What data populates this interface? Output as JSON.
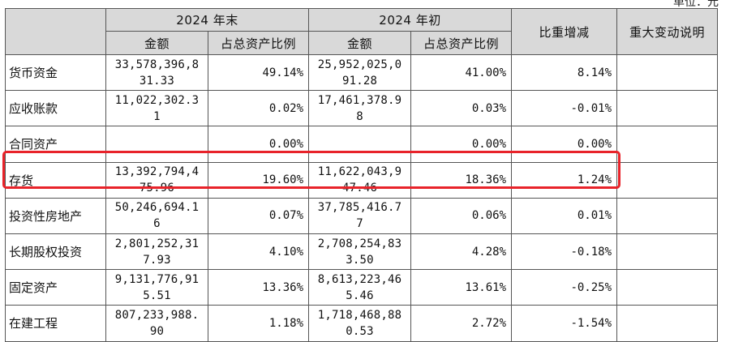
{
  "unit_label": "单位：元",
  "header": {
    "period_end": "2024 年末",
    "period_start": "2024 年初",
    "amount": "金额",
    "ratio": "占总资产比例",
    "change": "比重增减",
    "note": "重大变动说明"
  },
  "rows": [
    {
      "name": "货币资金",
      "end_amount_l1": "33,578,396,8",
      "end_amount_l2": "31.33",
      "end_ratio": "49.14%",
      "start_amount_l1": "25,952,025,0",
      "start_amount_l2": "91.28",
      "start_ratio": "41.00%",
      "change": "8.14%",
      "note": ""
    },
    {
      "name": "应收账款",
      "end_amount_l1": "11,022,302.3",
      "end_amount_l2": "1",
      "end_ratio": "0.02%",
      "start_amount_l1": "17,461,378.9",
      "start_amount_l2": "8",
      "start_ratio": "0.03%",
      "change": "-0.01%",
      "note": ""
    },
    {
      "name": "合同资产",
      "end_amount_l1": "",
      "end_amount_l2": "",
      "end_ratio": "0.00%",
      "start_amount_l1": "",
      "start_amount_l2": "",
      "start_ratio": "0.00%",
      "change": "0.00%",
      "note": ""
    },
    {
      "name": "存货",
      "end_amount_l1": "13,392,794,4",
      "end_amount_l2": "75.96",
      "end_ratio": "19.60%",
      "start_amount_l1": "11,622,043,9",
      "start_amount_l2": "47.46",
      "start_ratio": "18.36%",
      "change": "1.24%",
      "note": ""
    },
    {
      "name": "投资性房地产",
      "end_amount_l1": "50,246,694.1",
      "end_amount_l2": "6",
      "end_ratio": "0.07%",
      "start_amount_l1": "37,785,416.7",
      "start_amount_l2": "7",
      "start_ratio": "0.06%",
      "change": "0.01%",
      "note": ""
    },
    {
      "name": "长期股权投资",
      "end_amount_l1": "2,801,252,31",
      "end_amount_l2": "7.93",
      "end_ratio": "4.10%",
      "start_amount_l1": "2,708,254,83",
      "start_amount_l2": "3.50",
      "start_ratio": "4.28%",
      "change": "-0.18%",
      "note": ""
    },
    {
      "name": "固定资产",
      "end_amount_l1": "9,131,776,91",
      "end_amount_l2": "5.51",
      "end_ratio": "13.36%",
      "start_amount_l1": "8,613,223,46",
      "start_amount_l2": "5.46",
      "start_ratio": "13.61%",
      "change": "-0.25%",
      "note": ""
    },
    {
      "name": "在建工程",
      "end_amount_l1": "807,233,988.",
      "end_amount_l2": "90",
      "end_ratio": "1.18%",
      "start_amount_l1": "1,718,468,88",
      "start_amount_l2": "0.53",
      "start_ratio": "2.72%",
      "change": "-1.54%",
      "note": ""
    }
  ],
  "colors": {
    "header_bg": "#d9d9d9",
    "highlight": "#e8232a"
  }
}
